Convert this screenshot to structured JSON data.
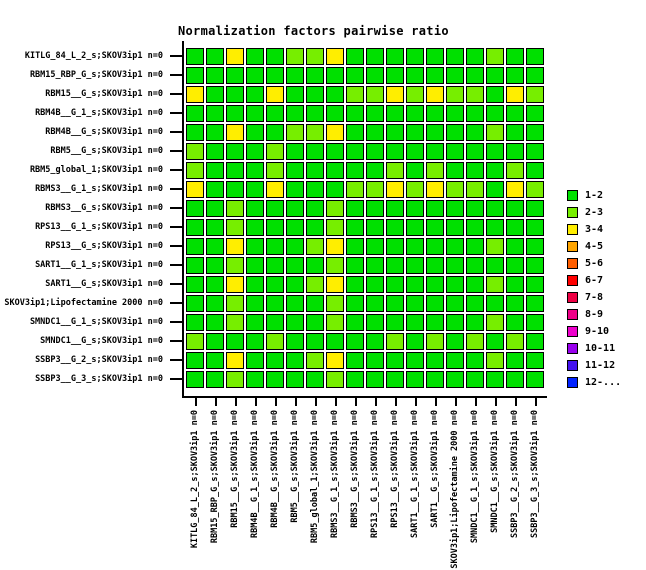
{
  "chart_data": {
    "type": "heatmap",
    "title": "Normalization factors pairwise ratio",
    "x_categories": [
      "KITLG_84_L_2_s;SKOV3ip1 n=0",
      "RBM15_RBP_G_s;SKOV3ip1 n=0",
      "RBM15__G_s;SKOV3ip1 n=0",
      "RBM4B__G_1_s;SKOV3ip1 n=0",
      "RBM4B__G_s;SKOV3ip1 n=0",
      "RBM5__G_s;SKOV3ip1 n=0",
      "RBM5_global_1;SKOV3ip1 n=0",
      "RBMS3__G_1_s;SKOV3ip1 n=0",
      "RBMS3__G_s;SKOV3ip1 n=0",
      "RPS13__G_1_s;SKOV3ip1 n=0",
      "RPS13__G_s;SKOV3ip1 n=0",
      "SART1__G_1_s;SKOV3ip1 n=0",
      "SART1__G_s;SKOV3ip1 n=0",
      "SKOV3ip1;Lipofectamine 2000 n=0",
      "SMNDC1__G_1_s;SKOV3ip1 n=0",
      "SMNDC1__G_s;SKOV3ip1 n=0",
      "SSBP3__G_2_s;SKOV3ip1 n=0",
      "SSBP3__G_3_s;SKOV3ip1 n=0"
    ],
    "y_categories": [
      "KITLG_84_L_2_s;SKOV3ip1 n=0",
      "RBM15_RBP_G_s;SKOV3ip1 n=0",
      "RBM15__G_s;SKOV3ip1 n=0",
      "RBM4B__G_1_s;SKOV3ip1 n=0",
      "RBM4B__G_s;SKOV3ip1 n=0",
      "RBM5__G_s;SKOV3ip1 n=0",
      "RBM5_global_1;SKOV3ip1 n=0",
      "RBMS3__G_1_s;SKOV3ip1 n=0",
      "RBMS3__G_s;SKOV3ip1 n=0",
      "RPS13__G_1_s;SKOV3ip1 n=0",
      "RPS13__G_s;SKOV3ip1 n=0",
      "SART1__G_1_s;SKOV3ip1 n=0",
      "SART1__G_s;SKOV3ip1 n=0",
      "SKOV3ip1;Lipofectamine 2000 n=0",
      "SMNDC1__G_1_s;SKOV3ip1 n=0",
      "SMNDC1__G_s;SKOV3ip1 n=0",
      "SSBP3__G_2_s;SKOV3ip1 n=0",
      "SSBP3__G_3_s;SKOV3ip1 n=0"
    ],
    "bin_labels": {
      "1": "1-2",
      "2": "2-3",
      "3": "3-4"
    },
    "matrix": [
      [
        1,
        1,
        3,
        1,
        1,
        2,
        2,
        3,
        1,
        1,
        1,
        1,
        1,
        1,
        1,
        2,
        1,
        1
      ],
      [
        1,
        1,
        1,
        1,
        1,
        1,
        1,
        1,
        1,
        1,
        1,
        1,
        1,
        1,
        1,
        1,
        1,
        1
      ],
      [
        3,
        1,
        1,
        1,
        3,
        1,
        1,
        1,
        2,
        2,
        3,
        2,
        3,
        2,
        2,
        1,
        3,
        2
      ],
      [
        1,
        1,
        1,
        1,
        1,
        1,
        1,
        1,
        1,
        1,
        1,
        1,
        1,
        1,
        1,
        1,
        1,
        1
      ],
      [
        1,
        1,
        3,
        1,
        1,
        2,
        2,
        3,
        1,
        1,
        1,
        1,
        1,
        1,
        1,
        2,
        1,
        1
      ],
      [
        2,
        1,
        1,
        1,
        2,
        1,
        1,
        1,
        1,
        1,
        1,
        1,
        1,
        1,
        1,
        1,
        1,
        1
      ],
      [
        2,
        1,
        1,
        1,
        2,
        1,
        1,
        1,
        1,
        1,
        2,
        1,
        2,
        1,
        1,
        1,
        2,
        1
      ],
      [
        3,
        1,
        1,
        1,
        3,
        1,
        1,
        1,
        2,
        2,
        3,
        2,
        3,
        2,
        2,
        1,
        3,
        2
      ],
      [
        1,
        1,
        2,
        1,
        1,
        1,
        1,
        2,
        1,
        1,
        1,
        1,
        1,
        1,
        1,
        1,
        1,
        1
      ],
      [
        1,
        1,
        2,
        1,
        1,
        1,
        1,
        2,
        1,
        1,
        1,
        1,
        1,
        1,
        1,
        1,
        1,
        1
      ],
      [
        1,
        1,
        3,
        1,
        1,
        1,
        2,
        3,
        1,
        1,
        1,
        1,
        1,
        1,
        1,
        2,
        1,
        1
      ],
      [
        1,
        1,
        2,
        1,
        1,
        1,
        1,
        2,
        1,
        1,
        1,
        1,
        1,
        1,
        1,
        1,
        1,
        1
      ],
      [
        1,
        1,
        3,
        1,
        1,
        1,
        2,
        3,
        1,
        1,
        1,
        1,
        1,
        1,
        1,
        2,
        1,
        1
      ],
      [
        1,
        1,
        2,
        1,
        1,
        1,
        1,
        2,
        1,
        1,
        1,
        1,
        1,
        1,
        1,
        1,
        1,
        1
      ],
      [
        1,
        1,
        2,
        1,
        1,
        1,
        1,
        2,
        1,
        1,
        1,
        1,
        1,
        1,
        1,
        2,
        1,
        1
      ],
      [
        2,
        1,
        1,
        1,
        2,
        1,
        1,
        1,
        1,
        1,
        2,
        1,
        2,
        1,
        2,
        1,
        2,
        1
      ],
      [
        1,
        1,
        3,
        1,
        1,
        1,
        2,
        3,
        1,
        1,
        1,
        1,
        1,
        1,
        1,
        2,
        1,
        1
      ],
      [
        1,
        1,
        2,
        1,
        1,
        1,
        1,
        2,
        1,
        1,
        1,
        1,
        1,
        1,
        1,
        1,
        1,
        1
      ]
    ],
    "legend_position": "right",
    "grid": "off"
  },
  "legend": {
    "items": [
      {
        "label": "1-2",
        "color": "#00e000"
      },
      {
        "label": "2-3",
        "color": "#77ee00"
      },
      {
        "label": "3-4",
        "color": "#ffee00"
      },
      {
        "label": "4-5",
        "color": "#ffa500"
      },
      {
        "label": "5-6",
        "color": "#ff5e00"
      },
      {
        "label": "6-7",
        "color": "#ff0000"
      },
      {
        "label": "7-8",
        "color": "#ee0044"
      },
      {
        "label": "8-9",
        "color": "#ee0088"
      },
      {
        "label": "9-10",
        "color": "#ee00cc"
      },
      {
        "label": "10-11",
        "color": "#9900ee"
      },
      {
        "label": "11-12",
        "color": "#4411ee"
      },
      {
        "label": "12-...",
        "color": "#0022ff"
      }
    ]
  }
}
